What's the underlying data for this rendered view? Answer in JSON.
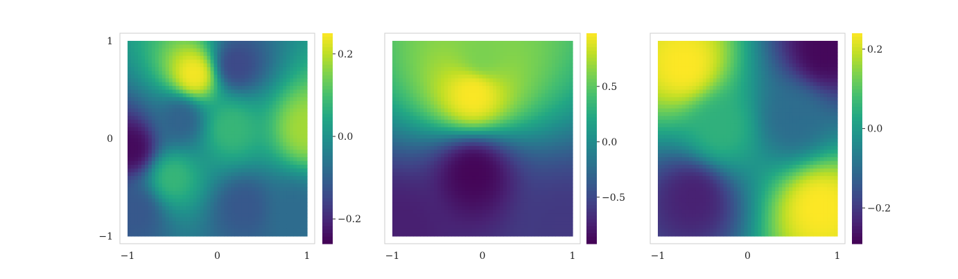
{
  "chart_data": [
    {
      "type": "heatmap",
      "colormap": "viridis",
      "xlim": [
        -1,
        1
      ],
      "ylim": [
        -1,
        1
      ],
      "x_ticks": [
        "−1",
        "0",
        "1"
      ],
      "y_ticks": [
        "1",
        "0",
        "−1"
      ],
      "colorbar": {
        "range": [
          -0.26,
          0.25
        ],
        "ticks": [
          0.2,
          0.0,
          -0.2
        ],
        "tick_labels": [
          "0.2",
          "0.0",
          "−0.2"
        ]
      },
      "features": [
        {
          "x": -0.25,
          "y": 0.65,
          "value": 0.25
        },
        {
          "x": 0.2,
          "y": 0.75,
          "value": -0.15
        },
        {
          "x": -0.95,
          "y": -0.1,
          "value": -0.25
        },
        {
          "x": 1.0,
          "y": 0.1,
          "value": 0.18
        },
        {
          "x": -0.4,
          "y": 0.2,
          "value": -0.1
        },
        {
          "x": 0.3,
          "y": -0.7,
          "value": -0.12
        },
        {
          "x": -0.9,
          "y": -0.75,
          "value": -0.12
        },
        {
          "x": 0.85,
          "y": -0.75,
          "value": -0.08
        },
        {
          "x": 0.15,
          "y": 0.1,
          "value": 0.08
        },
        {
          "x": -0.5,
          "y": -0.4,
          "value": 0.08
        }
      ]
    },
    {
      "type": "heatmap",
      "colormap": "viridis",
      "xlim": [
        -1,
        1
      ],
      "ylim": [
        -1,
        1
      ],
      "x_ticks": [
        "−1",
        "0",
        "1"
      ],
      "y_ticks": [],
      "colorbar": {
        "range": [
          -0.92,
          0.98
        ],
        "ticks": [
          0.5,
          0.0,
          -0.5
        ],
        "tick_labels": [
          "0.5",
          "0.0",
          "−0.5"
        ]
      },
      "features": [
        {
          "x": -0.1,
          "y": 0.45,
          "value": 0.98
        },
        {
          "x": 0.0,
          "y": 0.85,
          "value": 0.6
        },
        {
          "x": -0.1,
          "y": -0.35,
          "value": -0.9
        },
        {
          "x": -0.9,
          "y": -0.9,
          "value": -0.75
        },
        {
          "x": 0.9,
          "y": -0.9,
          "value": -0.6
        }
      ]
    },
    {
      "type": "heatmap",
      "colormap": "viridis",
      "xlim": [
        -1,
        1
      ],
      "ylim": [
        -1,
        1
      ],
      "x_ticks": [
        "−1",
        "0",
        "1"
      ],
      "y_ticks": [],
      "colorbar": {
        "range": [
          -0.29,
          0.24
        ],
        "ticks": [
          0.2,
          0.0,
          -0.2
        ],
        "tick_labels": [
          "0.2",
          "0.0",
          "−0.2"
        ]
      },
      "features": [
        {
          "x": -0.7,
          "y": 0.75,
          "value": 0.24
        },
        {
          "x": 0.85,
          "y": 0.9,
          "value": -0.28
        },
        {
          "x": 0.8,
          "y": -0.7,
          "value": 0.24
        },
        {
          "x": -0.6,
          "y": -0.6,
          "value": -0.24
        },
        {
          "x": 0.5,
          "y": 0.2,
          "value": -0.1
        },
        {
          "x": -0.3,
          "y": 0.1,
          "value": 0.05
        }
      ]
    }
  ]
}
